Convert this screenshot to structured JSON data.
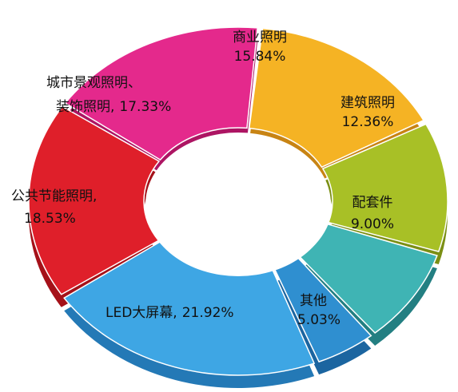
{
  "chart_data": {
    "type": "pie",
    "style": "3d-donut",
    "slices": [
      {
        "label": "商业照明",
        "value_text": "15.84%",
        "value": 15.84,
        "color": "#f5b324",
        "side_color": "#c88414"
      },
      {
        "label": "建筑照明",
        "value_text": "12.36%",
        "value": 12.36,
        "color": "#a8c026",
        "side_color": "#7b8f14"
      },
      {
        "label": "配套件",
        "value_text": "9.00%",
        "value": 9.0,
        "color": "#3fb4b4",
        "side_color": "#237f82"
      },
      {
        "label": "其他",
        "value_text": "5.03%",
        "value": 5.03,
        "color": "#2f8fd0",
        "side_color": "#1b65a0"
      },
      {
        "label": "LED大屏幕,",
        "value_text": "21.92%",
        "value": 21.92,
        "color": "#3ea6e4",
        "side_color": "#2479b6"
      },
      {
        "label": "公共节能照明,",
        "value_text": "18.53%",
        "value": 18.53,
        "color": "#df1f2a",
        "side_color": "#a51119"
      },
      {
        "label": "城市景观照明、",
        "label_line2": "装饰照明,",
        "value_text": "17.33%",
        "value": 17.33,
        "color": "#e4298c",
        "side_color": "#ad1563"
      }
    ]
  }
}
